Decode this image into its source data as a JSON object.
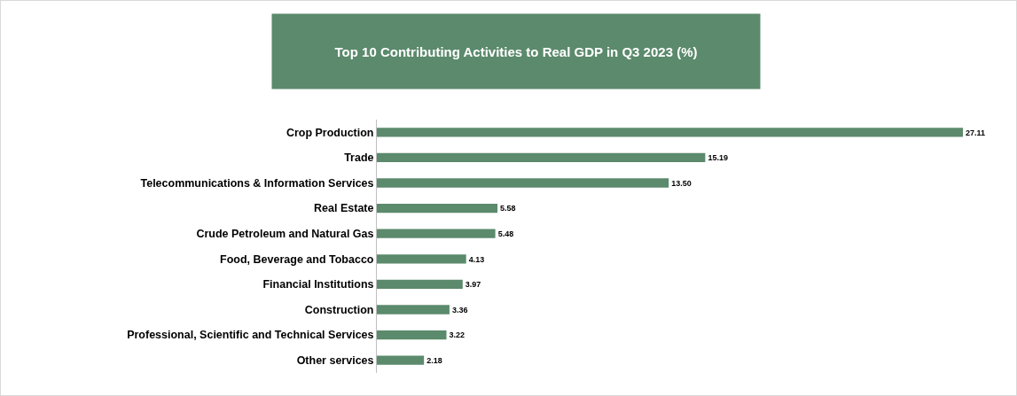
{
  "chart_data": {
    "type": "bar",
    "orientation": "horizontal",
    "title": "Top 10 Contributing Activities to Real GDP in Q3 2023 (%)",
    "categories": [
      "Crop Production",
      "Trade",
      "Telecommunications & Information Services",
      "Real Estate",
      "Crude Petroleum and Natural Gas",
      "Food, Beverage and Tobacco",
      "Financial Institutions",
      "Construction",
      "Professional, Scientific and Technical Services",
      "Other services"
    ],
    "values": [
      27.11,
      15.19,
      13.5,
      5.58,
      5.48,
      4.13,
      3.97,
      3.36,
      3.22,
      2.18
    ],
    "value_labels": [
      "27.11",
      "15.19",
      "13.50",
      "5.58",
      "5.48",
      "4.13",
      "3.97",
      "3.36",
      "3.22",
      "2.18"
    ],
    "color": "#5b8a6c"
  }
}
